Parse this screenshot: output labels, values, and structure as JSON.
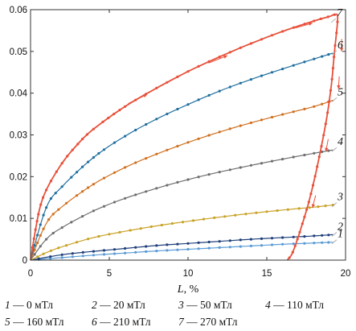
{
  "chart_data": {
    "type": "line",
    "xlabel": "L",
    "xunit": "%",
    "xlim": [
      0,
      20
    ],
    "ylim": [
      0,
      0.06
    ],
    "x_ticks": [
      "0",
      "5",
      "10",
      "15",
      "20"
    ],
    "y_ticks": [
      "0",
      "0.01",
      "0.02",
      "0.03",
      "0.04",
      "0.05",
      "0.06"
    ],
    "grid": false,
    "legend": [
      {
        "num": "1",
        "text": " — 0 мТл"
      },
      {
        "num": "2",
        "text": " — 20 мТл"
      },
      {
        "num": "3",
        "text": " — 50 мТл"
      },
      {
        "num": "4",
        "text": " — 110 мТл"
      },
      {
        "num": "5",
        "text": " — 160 мТл"
      },
      {
        "num": "6",
        "text": " — 210 мТл"
      },
      {
        "num": "7",
        "text": " — 270 мТл"
      }
    ],
    "series": [
      {
        "label": "1",
        "color": "#5b9bd5",
        "x": [
          0,
          2,
          4,
          6,
          8,
          10,
          12,
          14,
          16,
          18,
          19.2
        ],
        "y": [
          0,
          0.0006,
          0.0012,
          0.0017,
          0.0022,
          0.0026,
          0.003,
          0.0034,
          0.0038,
          0.0041,
          0.0043
        ]
      },
      {
        "label": "2",
        "color": "#1f3f7a",
        "x": [
          0,
          2,
          4,
          6,
          8,
          10,
          12,
          14,
          16,
          18,
          19.2
        ],
        "y": [
          0,
          0.0013,
          0.0021,
          0.0028,
          0.0035,
          0.004,
          0.0045,
          0.005,
          0.0054,
          0.0058,
          0.0061
        ]
      },
      {
        "label": "3",
        "color": "#c9a227",
        "x": [
          0,
          1,
          2,
          4,
          6,
          8,
          10,
          12,
          14,
          16,
          18,
          19.2
        ],
        "y": [
          0,
          0.0018,
          0.0032,
          0.0054,
          0.0069,
          0.0082,
          0.0093,
          0.0103,
          0.0112,
          0.012,
          0.0127,
          0.0132
        ]
      },
      {
        "label": "4",
        "color": "#6e6e6e",
        "x": [
          0,
          1,
          2,
          4,
          6,
          8,
          10,
          12,
          14,
          16,
          18,
          19.2
        ],
        "y": [
          0,
          0.005,
          0.0078,
          0.0118,
          0.0148,
          0.0172,
          0.0193,
          0.0211,
          0.0227,
          0.0242,
          0.0256,
          0.0264
        ]
      },
      {
        "label": "5",
        "color": "#d0701f",
        "x": [
          0,
          1,
          2,
          4,
          6,
          8,
          10,
          12,
          14,
          16,
          18,
          19.2
        ],
        "y": [
          0,
          0.0088,
          0.0128,
          0.0182,
          0.0222,
          0.0254,
          0.0282,
          0.0307,
          0.0329,
          0.0349,
          0.0368,
          0.0383
        ]
      },
      {
        "label": "6",
        "color": "#1f6f9f",
        "x": [
          0,
          1,
          2,
          4,
          6,
          8,
          10,
          12,
          14,
          16,
          18,
          19.2
        ],
        "y": [
          0,
          0.0126,
          0.0176,
          0.0246,
          0.0297,
          0.0338,
          0.0373,
          0.0405,
          0.0433,
          0.0458,
          0.0482,
          0.0496
        ]
      },
      {
        "label": "7",
        "color": "#e8503a",
        "x": [
          0,
          0.5,
          1,
          2,
          3,
          4,
          6,
          8,
          10,
          12,
          14,
          16,
          18,
          19,
          19.3,
          19.5,
          19.3,
          19.1,
          18.8,
          18.4,
          18,
          17.6,
          17.2,
          16.9,
          16.6,
          16.3
        ],
        "y": [
          0,
          0.011,
          0.0168,
          0.0232,
          0.0278,
          0.0314,
          0.0368,
          0.0412,
          0.0452,
          0.0487,
          0.0519,
          0.0548,
          0.0573,
          0.0584,
          0.0588,
          0.058,
          0.05,
          0.042,
          0.034,
          0.026,
          0.019,
          0.013,
          0.008,
          0.0045,
          0.0015,
          0
        ]
      }
    ]
  }
}
